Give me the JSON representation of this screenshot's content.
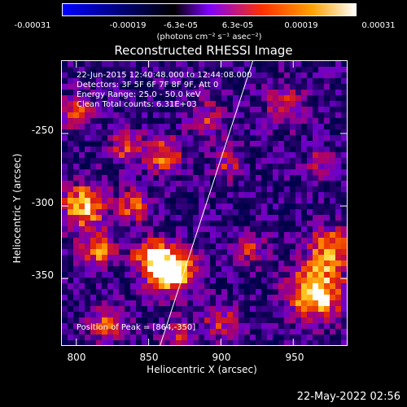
{
  "colorbar": {
    "ticks": [
      "-0.00031",
      "-0.00019",
      "-6.3e-05",
      "6.3e-05",
      "0.00019",
      "0.00031"
    ],
    "unit_label": "(photons cm⁻² s⁻¹ asec⁻²)",
    "colors": [
      "#0000ff",
      "#000000",
      "#8000ff",
      "#ff3000",
      "#ffa000",
      "#ffffff"
    ]
  },
  "plot": {
    "title": "Reconstructed RHESSI Image",
    "info_lines": [
      "22-Jun-2015 12:40:48.000 to 12:44:08.000",
      "Detectors: 3F 5F 6F 7F 8F 9F, Att 0",
      "Energy Range: 25.0 - 50.0 keV",
      "Clean     Total counts: 6.31E+03"
    ],
    "peak_label": "Position of Peak = [864,-350]",
    "xlabel": "Heliocentric X (arcsec)",
    "ylabel": "Heliocentric Y (arcsec)",
    "xticks": [
      "800",
      "850",
      "900",
      "950"
    ],
    "yticks": [
      "-250",
      "-300",
      "-350"
    ]
  },
  "chart_data": {
    "type": "heatmap",
    "title": "Reconstructed RHESSI Image",
    "xlabel": "Heliocentric X (arcsec)",
    "ylabel": "Heliocentric Y (arcsec)",
    "xlim": [
      790,
      987
    ],
    "ylim": [
      -396,
      -200
    ],
    "xticks": [
      800,
      850,
      900,
      950
    ],
    "yticks": [
      -250,
      -300,
      -350
    ],
    "colorbar_range": [
      -0.00031,
      0.00031
    ],
    "peak": [
      864,
      -350
    ],
    "limb_line": [
      [
        858,
        -396
      ],
      [
        922,
        -200
      ]
    ],
    "hotspots": [
      {
        "x": 866,
        "y": -345,
        "amp": 1.0,
        "r": 11
      },
      {
        "x": 852,
        "y": -335,
        "amp": 0.65,
        "r": 9
      },
      {
        "x": 965,
        "y": -360,
        "amp": 0.95,
        "r": 13
      },
      {
        "x": 975,
        "y": -330,
        "amp": 0.7,
        "r": 10
      },
      {
        "x": 805,
        "y": -300,
        "amp": 0.75,
        "r": 11
      },
      {
        "x": 815,
        "y": -330,
        "amp": 0.6,
        "r": 9
      },
      {
        "x": 840,
        "y": -300,
        "amp": 0.55,
        "r": 8
      },
      {
        "x": 860,
        "y": -265,
        "amp": 0.6,
        "r": 9
      },
      {
        "x": 835,
        "y": -260,
        "amp": 0.5,
        "r": 8
      },
      {
        "x": 890,
        "y": -240,
        "amp": 0.45,
        "r": 9
      },
      {
        "x": 905,
        "y": -270,
        "amp": 0.4,
        "r": 8
      },
      {
        "x": 800,
        "y": -235,
        "amp": 0.45,
        "r": 9
      },
      {
        "x": 945,
        "y": -230,
        "amp": 0.45,
        "r": 10
      },
      {
        "x": 970,
        "y": -270,
        "amp": 0.35,
        "r": 8
      },
      {
        "x": 820,
        "y": -380,
        "amp": 0.5,
        "r": 9
      },
      {
        "x": 870,
        "y": -390,
        "amp": 0.4,
        "r": 8
      },
      {
        "x": 920,
        "y": -330,
        "amp": 0.4,
        "r": 8
      },
      {
        "x": 900,
        "y": -380,
        "amp": 0.4,
        "r": 9
      }
    ],
    "colormap": "RHESSI (blue-black-purple-red-yellow-white)"
  },
  "footer": {
    "timestamp": "22-May-2022 02:56"
  }
}
